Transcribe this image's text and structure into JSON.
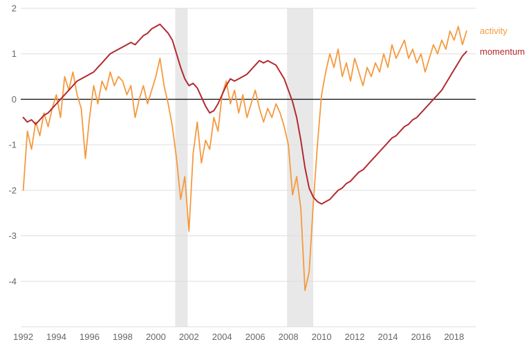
{
  "chart": {
    "legend": {
      "activity_label": "activity",
      "momentum_label": "momentum"
    },
    "colors": {
      "activity": "#F5993D",
      "momentum": "#B2292E",
      "recession_band": "#E8E8E8",
      "zero_line": "#1A1A1A",
      "grid": "#DDDDDD",
      "tick_text": "#666666"
    }
  },
  "chart_data": {
    "type": "line",
    "title": "",
    "xlabel": "",
    "ylabel": "",
    "xlim": [
      1991.85,
      2019.3
    ],
    "ylim": [
      -5,
      2
    ],
    "x_ticks": [
      1992,
      1994,
      1996,
      1998,
      2000,
      2002,
      2004,
      2006,
      2008,
      2010,
      2012,
      2014,
      2016,
      2018
    ],
    "y_ticks": [
      2,
      1,
      0,
      -1,
      -2,
      -3,
      -4
    ],
    "y_gridlines": [
      2,
      1,
      0,
      -1,
      -2,
      -3,
      -4,
      -5
    ],
    "legend_position": "right-of-line-ends",
    "recession_bands": [
      [
        2001.17,
        2001.92
      ],
      [
        2007.92,
        2009.5
      ]
    ],
    "x": [
      1992,
      1992.25,
      1992.5,
      1992.75,
      1993,
      1993.25,
      1993.5,
      1993.75,
      1994,
      1994.25,
      1994.5,
      1994.75,
      1995,
      1995.25,
      1995.5,
      1995.75,
      1996,
      1996.25,
      1996.5,
      1996.75,
      1997,
      1997.25,
      1997.5,
      1997.75,
      1998,
      1998.25,
      1998.5,
      1998.75,
      1999,
      1999.25,
      1999.5,
      1999.75,
      2000,
      2000.25,
      2000.5,
      2000.75,
      2001,
      2001.25,
      2001.5,
      2001.75,
      2002,
      2002.25,
      2002.5,
      2002.75,
      2003,
      2003.25,
      2003.5,
      2003.75,
      2004,
      2004.25,
      2004.5,
      2004.75,
      2005,
      2005.25,
      2005.5,
      2005.75,
      2006,
      2006.25,
      2006.5,
      2006.75,
      2007,
      2007.25,
      2007.5,
      2007.75,
      2008,
      2008.25,
      2008.5,
      2008.75,
      2009,
      2009.25,
      2009.5,
      2009.75,
      2010,
      2010.25,
      2010.5,
      2010.75,
      2011,
      2011.25,
      2011.5,
      2011.75,
      2012,
      2012.25,
      2012.5,
      2012.75,
      2013,
      2013.25,
      2013.5,
      2013.75,
      2014,
      2014.25,
      2014.5,
      2014.75,
      2015,
      2015.25,
      2015.5,
      2015.75,
      2016,
      2016.25,
      2016.5,
      2016.75,
      2017,
      2017.25,
      2017.5,
      2017.75,
      2018,
      2018.25,
      2018.5,
      2018.75
    ],
    "series": [
      {
        "name": "activity",
        "values": [
          -2.0,
          -0.7,
          -1.1,
          -0.5,
          -0.8,
          -0.3,
          -0.6,
          -0.2,
          0.1,
          -0.4,
          0.5,
          0.2,
          0.6,
          0.1,
          -0.2,
          -1.3,
          -0.4,
          0.3,
          -0.1,
          0.4,
          0.2,
          0.6,
          0.3,
          0.5,
          0.4,
          0.1,
          0.3,
          -0.4,
          0.0,
          0.3,
          -0.1,
          0.2,
          0.5,
          0.9,
          0.3,
          -0.1,
          -0.6,
          -1.3,
          -2.2,
          -1.7,
          -2.9,
          -1.2,
          -0.5,
          -1.4,
          -0.9,
          -1.1,
          -0.4,
          -0.7,
          0.1,
          0.4,
          -0.1,
          0.2,
          -0.3,
          0.1,
          -0.4,
          -0.1,
          0.2,
          -0.2,
          -0.5,
          -0.2,
          -0.4,
          -0.1,
          -0.3,
          -0.6,
          -1.0,
          -2.1,
          -1.7,
          -2.4,
          -4.2,
          -3.8,
          -2.3,
          -1.0,
          0.1,
          0.6,
          1.0,
          0.7,
          1.1,
          0.5,
          0.8,
          0.4,
          0.9,
          0.6,
          0.3,
          0.7,
          0.5,
          0.8,
          0.6,
          1.0,
          0.7,
          1.2,
          0.9,
          1.1,
          1.3,
          0.9,
          1.1,
          0.8,
          1.0,
          0.6,
          0.9,
          1.2,
          1.0,
          1.3,
          1.1,
          1.5,
          1.3,
          1.6,
          1.2,
          1.5
        ]
      },
      {
        "name": "momentum",
        "values": [
          -0.4,
          -0.5,
          -0.45,
          -0.55,
          -0.45,
          -0.35,
          -0.3,
          -0.2,
          -0.1,
          0.0,
          0.1,
          0.2,
          0.3,
          0.4,
          0.45,
          0.5,
          0.55,
          0.6,
          0.7,
          0.8,
          0.9,
          1.0,
          1.05,
          1.1,
          1.15,
          1.2,
          1.25,
          1.2,
          1.3,
          1.4,
          1.45,
          1.55,
          1.6,
          1.65,
          1.55,
          1.45,
          1.3,
          1.0,
          0.7,
          0.45,
          0.3,
          0.35,
          0.25,
          0.05,
          -0.15,
          -0.3,
          -0.25,
          -0.1,
          0.1,
          0.3,
          0.45,
          0.4,
          0.45,
          0.5,
          0.55,
          0.65,
          0.75,
          0.85,
          0.8,
          0.85,
          0.8,
          0.75,
          0.6,
          0.45,
          0.2,
          -0.05,
          -0.4,
          -0.9,
          -1.5,
          -1.95,
          -2.15,
          -2.25,
          -2.3,
          -2.25,
          -2.2,
          -2.1,
          -2.0,
          -1.95,
          -1.85,
          -1.8,
          -1.7,
          -1.6,
          -1.55,
          -1.45,
          -1.35,
          -1.25,
          -1.15,
          -1.05,
          -0.95,
          -0.85,
          -0.8,
          -0.7,
          -0.6,
          -0.55,
          -0.45,
          -0.4,
          -0.3,
          -0.2,
          -0.1,
          0.0,
          0.1,
          0.2,
          0.35,
          0.5,
          0.65,
          0.8,
          0.95,
          1.05
        ]
      }
    ]
  }
}
